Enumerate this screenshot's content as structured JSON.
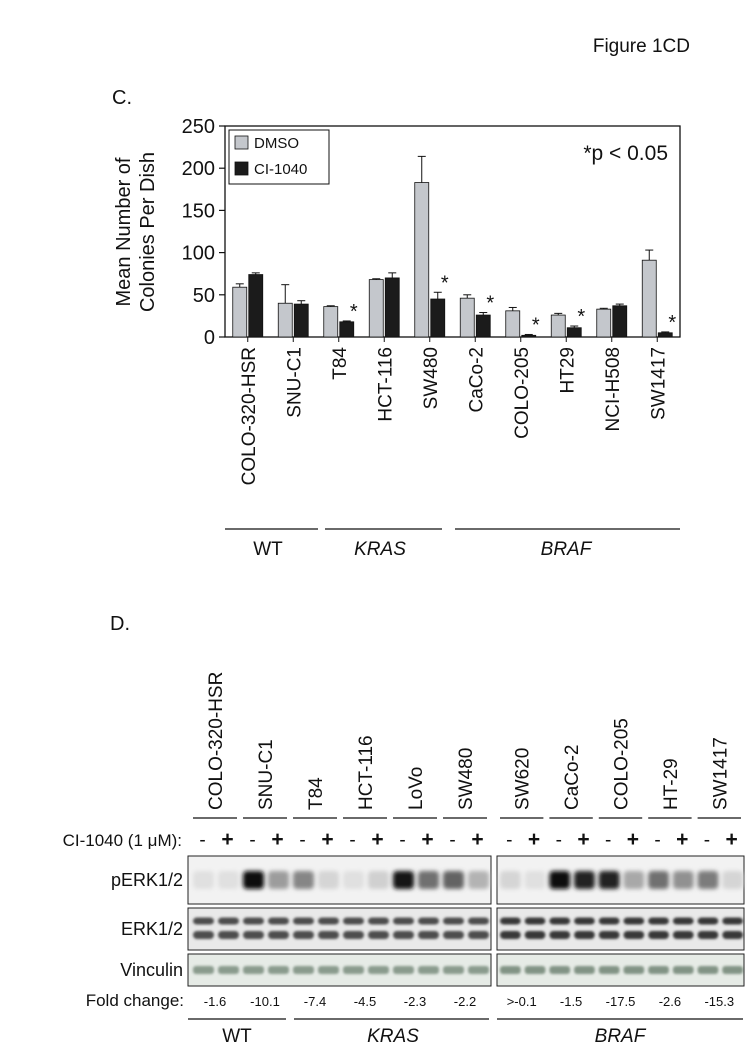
{
  "page_header": "Figure 1CD",
  "panel_c": {
    "label": "C.",
    "significance_note": "*p < 0.05",
    "group_labels": [
      "WT",
      "KRAS",
      "BRAF"
    ]
  },
  "chart_data": {
    "type": "bar",
    "ylabel": "Mean Number of Colonies Per Dish",
    "ylabel_lines": [
      "Mean Number of",
      "Colonies Per Dish"
    ],
    "ylim": [
      0,
      250
    ],
    "yticks": [
      0,
      50,
      100,
      150,
      200,
      250
    ],
    "categories": [
      "COLO-320-HSR",
      "SNU-C1",
      "T84",
      "HCT-116",
      "SW480",
      "CaCo-2",
      "COLO-205",
      "HT29",
      "NCI-H508",
      "SW1417"
    ],
    "series": [
      {
        "name": "DMSO",
        "color": "#c4c7cc",
        "values": [
          59,
          40,
          36,
          68,
          183,
          46,
          31,
          26,
          33,
          91
        ],
        "errors": [
          4,
          22,
          1,
          1,
          31,
          4,
          4,
          2,
          1,
          12
        ]
      },
      {
        "name": "CI-1040",
        "color": "#1b1b1b",
        "values": [
          74,
          39,
          18,
          70,
          45,
          26,
          2,
          11,
          37,
          5
        ],
        "errors": [
          2,
          4,
          1,
          6,
          8,
          3,
          1,
          2,
          2,
          1
        ]
      }
    ],
    "significant": [
      "T84",
      "SW480",
      "CaCo-2",
      "COLO-205",
      "HT29",
      "SW1417"
    ],
    "legend_position": "top-left"
  },
  "panel_d": {
    "label": "D.",
    "lanes_left": [
      "COLO-320-HSR",
      "SNU-C1",
      "T84",
      "HCT-116",
      "LoVo",
      "SW480"
    ],
    "lanes_right": [
      "SW620",
      "CaCo-2",
      "COLO-205",
      "HT-29",
      "SW1417"
    ],
    "treatment_label": "CI-1040 (1 μM):",
    "treatment_marks": [
      "-",
      "+"
    ],
    "row_labels": [
      "pERK1/2",
      "ERK1/2",
      "Vinculin"
    ],
    "fold_change_label": "Fold change:",
    "fold_left": [
      "-1.6",
      "-10.1",
      "-7.4",
      "-4.5",
      "-2.3",
      "-2.2"
    ],
    "fold_right": [
      ">-0.1",
      "-1.5",
      "-17.5",
      "-2.6",
      "-15.3"
    ],
    "group_labels": [
      "WT",
      "KRAS",
      "BRAF"
    ]
  }
}
